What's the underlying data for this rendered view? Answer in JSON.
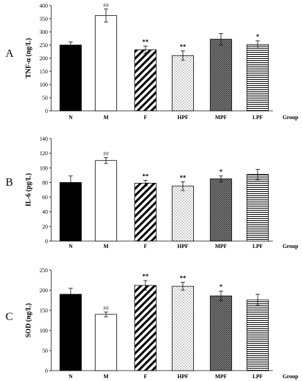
{
  "chart_data": [
    {
      "type": "bar",
      "panel_label": "A",
      "ylabel": "TNF-α (ng/L)",
      "xlabel": "Group",
      "categories": [
        "N",
        "M",
        "F",
        "HPF",
        "MPF",
        "LPF"
      ],
      "values": [
        250,
        362,
        232,
        210,
        272,
        252
      ],
      "errors": [
        12,
        25,
        14,
        18,
        22,
        14
      ],
      "significance": [
        "",
        "##",
        "**",
        "**",
        "",
        "*"
      ],
      "ylim": [
        0,
        400
      ],
      "yticks": [
        0,
        50,
        100,
        150,
        200,
        250,
        300,
        350,
        400
      ],
      "fills": [
        "solid",
        "white",
        "diagonal",
        "dots",
        "crosshatch",
        "horizontal"
      ]
    },
    {
      "type": "bar",
      "panel_label": "B",
      "ylabel": "IL-6 (pg/L)",
      "xlabel": "Group",
      "categories": [
        "N",
        "M",
        "F",
        "HPF",
        "MPF",
        "LPF"
      ],
      "values": [
        80,
        110,
        79,
        75,
        85,
        91
      ],
      "errors": [
        9,
        4,
        4,
        6,
        4,
        7
      ],
      "significance": [
        "",
        "##",
        "**",
        "**",
        "*",
        ""
      ],
      "ylim": [
        0,
        140
      ],
      "yticks": [
        0,
        20,
        40,
        60,
        80,
        100,
        120,
        140
      ],
      "fills": [
        "solid",
        "white",
        "diagonal",
        "dots",
        "crosshatch",
        "horizontal"
      ]
    },
    {
      "type": "bar",
      "panel_label": "C",
      "ylabel": "SOD (ng/L)",
      "xlabel": "Group",
      "categories": [
        "N",
        "M",
        "F",
        "HPF",
        "MPF",
        "LPF"
      ],
      "values": [
        190,
        140,
        212,
        210,
        186,
        176
      ],
      "errors": [
        15,
        6,
        12,
        10,
        12,
        14
      ],
      "significance": [
        "",
        "##",
        "**",
        "**",
        "*",
        ""
      ],
      "ylim": [
        0,
        250
      ],
      "yticks": [
        0,
        50,
        100,
        150,
        200,
        250
      ],
      "fills": [
        "solid",
        "white",
        "diagonal",
        "dots",
        "crosshatch",
        "horizontal"
      ]
    }
  ]
}
